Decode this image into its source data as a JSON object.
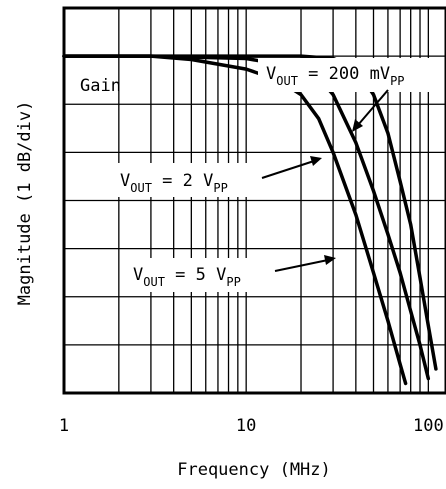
{
  "chart_data": {
    "type": "line",
    "x_scale": "log",
    "xlim": [
      1,
      125
    ],
    "ylim": [
      -7,
      1
    ],
    "grid": true,
    "xlabel": "Frequency (MHz)",
    "ylabel": "Magnitude (1 dB/div)",
    "x_tick_labels": [
      "1",
      "10",
      "100"
    ],
    "series": [
      {
        "name": "V_OUT = 200 mV_PP",
        "x": [
          1,
          3,
          10,
          20,
          30,
          40,
          50,
          60,
          70,
          80,
          90,
          100,
          110
        ],
        "y": [
          0,
          0,
          0,
          0,
          -0.05,
          -0.25,
          -0.8,
          -1.6,
          -2.6,
          -3.5,
          -4.6,
          -5.6,
          -6.5
        ]
      },
      {
        "name": "V_OUT = 2 V_PP",
        "x": [
          1,
          3,
          10,
          20,
          25,
          30,
          40,
          50,
          60,
          70,
          80,
          90,
          100
        ],
        "y": [
          0,
          0,
          -0.05,
          -0.25,
          -0.45,
          -0.8,
          -1.8,
          -2.8,
          -3.7,
          -4.5,
          -5.3,
          -6.0,
          -6.7
        ]
      },
      {
        "name": "V_OUT = 5 V_PP",
        "x": [
          1,
          3,
          5,
          10,
          15,
          20,
          25,
          30,
          40,
          50,
          60,
          70,
          75
        ],
        "y": [
          0,
          0,
          -0.07,
          -0.27,
          -0.5,
          -0.8,
          -1.3,
          -2.0,
          -3.3,
          -4.5,
          -5.5,
          -6.4,
          -6.8
        ]
      }
    ],
    "annotations": [
      {
        "name": "gain",
        "text": "Gain"
      },
      {
        "name": "v200",
        "main": "V",
        "sub1": "OUT",
        "mid": " = 200 mV",
        "sub2": "PP"
      },
      {
        "name": "v2",
        "main": "V",
        "sub1": "OUT",
        "mid": " = 2 V",
        "sub2": "PP"
      },
      {
        "name": "v5",
        "main": "V",
        "sub1": "OUT",
        "mid": " = 5 V",
        "sub2": "PP"
      }
    ]
  }
}
